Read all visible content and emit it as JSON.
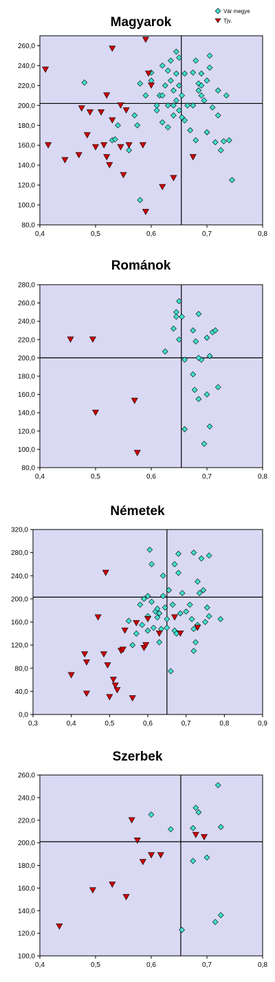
{
  "legend": [
    {
      "label": "Vár megye",
      "color": "#40E0D0",
      "marker": "diamond"
    },
    {
      "label": "Tjv.",
      "color": "#CC0000",
      "marker": "triangle-down"
    }
  ],
  "chart_data": [
    {
      "type": "scatter",
      "title": "Magyarok",
      "xlim": [
        0.4,
        0.8
      ],
      "ylim": [
        80,
        270
      ],
      "xticks": [
        "0,4",
        "0,5",
        "0,6",
        "0,7",
        "0,8"
      ],
      "yticks": [
        "80,0",
        "100,0",
        "120,0",
        "140,0",
        "160,0",
        "180,0",
        "200,0",
        "220,0",
        "240,0",
        "260,0"
      ],
      "ytick_values": [
        80,
        100,
        120,
        140,
        160,
        180,
        200,
        220,
        240,
        260
      ],
      "xtick_values": [
        0.4,
        0.5,
        0.6,
        0.7,
        0.8
      ],
      "refline": {
        "x": 0.654,
        "y": 202
      },
      "series": [
        {
          "name": "Vár megye",
          "points": [
            [
              0.48,
              223
            ],
            [
              0.57,
              190
            ],
            [
              0.575,
              180
            ],
            [
              0.58,
              105
            ],
            [
              0.58,
              222
            ],
            [
              0.59,
              210
            ],
            [
              0.6,
              225
            ],
            [
              0.6,
              233
            ],
            [
              0.61,
              200
            ],
            [
              0.61,
              195
            ],
            [
              0.615,
              210
            ],
            [
              0.62,
              240
            ],
            [
              0.62,
              210
            ],
            [
              0.62,
              183
            ],
            [
              0.625,
              220
            ],
            [
              0.63,
              235
            ],
            [
              0.63,
              200
            ],
            [
              0.63,
              178
            ],
            [
              0.635,
              245
            ],
            [
              0.635,
              225
            ],
            [
              0.64,
              215
            ],
            [
              0.64,
              200
            ],
            [
              0.64,
              190
            ],
            [
              0.645,
              254
            ],
            [
              0.645,
              232
            ],
            [
              0.645,
              205
            ],
            [
              0.65,
              248
            ],
            [
              0.65,
              220
            ],
            [
              0.65,
              195
            ],
            [
              0.655,
              210
            ],
            [
              0.655,
              188
            ],
            [
              0.66,
              232
            ],
            [
              0.66,
              185
            ],
            [
              0.665,
              200
            ],
            [
              0.67,
              175
            ],
            [
              0.675,
              233
            ],
            [
              0.675,
              200
            ],
            [
              0.68,
              245
            ],
            [
              0.68,
              165
            ],
            [
              0.685,
              222
            ],
            [
              0.685,
              215
            ],
            [
              0.69,
              210
            ],
            [
              0.69,
              220
            ],
            [
              0.69,
              232
            ],
            [
              0.695,
              205
            ],
            [
              0.7,
              225
            ],
            [
              0.7,
              173
            ],
            [
              0.705,
              250
            ],
            [
              0.705,
              238
            ],
            [
              0.71,
              198
            ],
            [
              0.715,
              163
            ],
            [
              0.72,
              215
            ],
            [
              0.72,
              190
            ],
            [
              0.725,
              155
            ],
            [
              0.73,
              164
            ],
            [
              0.735,
              210
            ],
            [
              0.74,
              165
            ],
            [
              0.745,
              125
            ],
            [
              0.53,
              165
            ],
            [
              0.535,
              166
            ],
            [
              0.56,
              155
            ],
            [
              0.54,
              180
            ]
          ]
        },
        {
          "name": "Tjv.",
          "points": [
            [
              0.41,
              236
            ],
            [
              0.415,
              160
            ],
            [
              0.445,
              145
            ],
            [
              0.47,
              150
            ],
            [
              0.475,
              197
            ],
            [
              0.485,
              170
            ],
            [
              0.49,
              193
            ],
            [
              0.5,
              158
            ],
            [
              0.51,
              193
            ],
            [
              0.515,
              160
            ],
            [
              0.52,
              148
            ],
            [
              0.52,
              210
            ],
            [
              0.525,
              140
            ],
            [
              0.53,
              257
            ],
            [
              0.545,
              200
            ],
            [
              0.545,
              158
            ],
            [
              0.55,
              130
            ],
            [
              0.555,
              195
            ],
            [
              0.56,
              160
            ],
            [
              0.585,
              160
            ],
            [
              0.59,
              266
            ],
            [
              0.59,
              93
            ],
            [
              0.595,
              232
            ],
            [
              0.6,
              220
            ],
            [
              0.62,
              118
            ],
            [
              0.64,
              127
            ],
            [
              0.675,
              148
            ],
            [
              0.53,
              185
            ]
          ]
        }
      ]
    },
    {
      "type": "scatter",
      "title": "Románok",
      "xlim": [
        0.4,
        0.8
      ],
      "ylim": [
        80,
        280
      ],
      "xticks": [
        "0,4",
        "0,5",
        "0,6",
        "0,7",
        "0,8"
      ],
      "yticks": [
        "80,0",
        "100,0",
        "120,0",
        "140,0",
        "160,0",
        "180,0",
        "200,0",
        "220,0",
        "240,0",
        "260,0",
        "280,0"
      ],
      "ytick_values": [
        80,
        100,
        120,
        140,
        160,
        180,
        200,
        220,
        240,
        260,
        280
      ],
      "xtick_values": [
        0.4,
        0.5,
        0.6,
        0.7,
        0.8
      ],
      "refline": {
        "x": 0.654,
        "y": 200
      },
      "series": [
        {
          "name": "Vár megye",
          "points": [
            [
              0.625,
              207
            ],
            [
              0.64,
              232
            ],
            [
              0.645,
              250
            ],
            [
              0.645,
              245
            ],
            [
              0.65,
              262
            ],
            [
              0.65,
              220
            ],
            [
              0.655,
              245
            ],
            [
              0.66,
              198
            ],
            [
              0.66,
              122
            ],
            [
              0.675,
              230
            ],
            [
              0.675,
              182
            ],
            [
              0.68,
              218
            ],
            [
              0.685,
              248
            ],
            [
              0.685,
              155
            ],
            [
              0.69,
              198
            ],
            [
              0.695,
              106
            ],
            [
              0.7,
              222
            ],
            [
              0.7,
              160
            ],
            [
              0.705,
              202
            ],
            [
              0.705,
              125
            ],
            [
              0.71,
              228
            ],
            [
              0.715,
              230
            ],
            [
              0.72,
              168
            ],
            [
              0.685,
              200
            ],
            [
              0.678,
              165
            ]
          ]
        },
        {
          "name": "Tjv.",
          "points": [
            [
              0.455,
              220
            ],
            [
              0.495,
              220
            ],
            [
              0.5,
              140
            ],
            [
              0.57,
              153
            ],
            [
              0.575,
              96
            ]
          ]
        }
      ]
    },
    {
      "type": "scatter",
      "title": "Németek",
      "xlim": [
        0.3,
        0.9
      ],
      "ylim": [
        0,
        320
      ],
      "xticks": [
        "0,3",
        "0,4",
        "0,5",
        "0,6",
        "0,7",
        "0,8",
        "0,9"
      ],
      "yticks": [
        "0,0",
        "40,0",
        "80,0",
        "120,0",
        "160,0",
        "200,0",
        "240,0",
        "280,0",
        "320,0"
      ],
      "ytick_values": [
        0,
        40,
        80,
        120,
        160,
        200,
        240,
        280,
        320
      ],
      "xtick_values": [
        0.3,
        0.4,
        0.5,
        0.6,
        0.7,
        0.8,
        0.9
      ],
      "refline": {
        "x": 0.65,
        "y": 203
      },
      "series": [
        {
          "name": "Vár megye",
          "points": [
            [
              0.55,
              162
            ],
            [
              0.56,
              120
            ],
            [
              0.57,
              140
            ],
            [
              0.58,
              190
            ],
            [
              0.585,
              155
            ],
            [
              0.59,
              200
            ],
            [
              0.6,
              205
            ],
            [
              0.6,
              170
            ],
            [
              0.6,
              145
            ],
            [
              0.605,
              285
            ],
            [
              0.61,
              260
            ],
            [
              0.61,
              195
            ],
            [
              0.615,
              150
            ],
            [
              0.62,
              178
            ],
            [
              0.625,
              183
            ],
            [
              0.625,
              168
            ],
            [
              0.63,
              175
            ],
            [
              0.63,
              125
            ],
            [
              0.635,
              148
            ],
            [
              0.64,
              240
            ],
            [
              0.64,
              205
            ],
            [
              0.645,
              185
            ],
            [
              0.65,
              165
            ],
            [
              0.65,
              150
            ],
            [
              0.655,
              215
            ],
            [
              0.66,
              75
            ],
            [
              0.665,
              190
            ],
            [
              0.67,
              260
            ],
            [
              0.67,
              145
            ],
            [
              0.675,
              140
            ],
            [
              0.68,
              278
            ],
            [
              0.68,
              245
            ],
            [
              0.685,
              175
            ],
            [
              0.69,
              210
            ],
            [
              0.7,
              178
            ],
            [
              0.71,
              190
            ],
            [
              0.715,
              165
            ],
            [
              0.72,
              280
            ],
            [
              0.72,
              148
            ],
            [
              0.72,
              110
            ],
            [
              0.725,
              125
            ],
            [
              0.73,
              230
            ],
            [
              0.735,
              210
            ],
            [
              0.74,
              270
            ],
            [
              0.745,
              215
            ],
            [
              0.75,
              160
            ],
            [
              0.755,
              185
            ],
            [
              0.76,
              275
            ],
            [
              0.79,
              165
            ],
            [
              0.76,
              170
            ],
            [
              0.73,
              155
            ]
          ]
        },
        {
          "name": "Tjv.",
          "points": [
            [
              0.4,
              68
            ],
            [
              0.435,
              104
            ],
            [
              0.44,
              36
            ],
            [
              0.44,
              90
            ],
            [
              0.47,
              168
            ],
            [
              0.485,
              104
            ],
            [
              0.49,
              245
            ],
            [
              0.495,
              85
            ],
            [
              0.5,
              30
            ],
            [
              0.51,
              60
            ],
            [
              0.515,
              50
            ],
            [
              0.52,
              42
            ],
            [
              0.53,
              110
            ],
            [
              0.535,
              112
            ],
            [
              0.54,
              145
            ],
            [
              0.56,
              28
            ],
            [
              0.57,
              158
            ],
            [
              0.59,
              115
            ],
            [
              0.595,
              120
            ],
            [
              0.6,
              165
            ],
            [
              0.63,
              140
            ],
            [
              0.67,
              168
            ],
            [
              0.685,
              140
            ],
            [
              0.73,
              150
            ]
          ]
        }
      ]
    },
    {
      "type": "scatter",
      "title": "Szerbek",
      "xlim": [
        0.4,
        0.8
      ],
      "ylim": [
        100,
        260
      ],
      "xticks": [
        "0,4",
        "0,5",
        "0,6",
        "0,7",
        "0,8"
      ],
      "yticks": [
        "100,0",
        "120,0",
        "140,0",
        "160,0",
        "180,0",
        "200,0",
        "220,0",
        "240,0",
        "260,0"
      ],
      "ytick_values": [
        100,
        120,
        140,
        160,
        180,
        200,
        220,
        240,
        260
      ],
      "xtick_values": [
        0.4,
        0.5,
        0.6,
        0.7,
        0.8
      ],
      "refline": {
        "x": 0.653,
        "y": 201
      },
      "series": [
        {
          "name": "Vár megye",
          "points": [
            [
              0.6,
              225
            ],
            [
              0.635,
              212
            ],
            [
              0.655,
              123
            ],
            [
              0.675,
              213
            ],
            [
              0.675,
              184
            ],
            [
              0.68,
              231
            ],
            [
              0.685,
              227
            ],
            [
              0.7,
              187
            ],
            [
              0.715,
              130
            ],
            [
              0.72,
              251
            ],
            [
              0.725,
              214
            ],
            [
              0.725,
              136
            ]
          ]
        },
        {
          "name": "Tjv.",
          "points": [
            [
              0.435,
              126
            ],
            [
              0.495,
              158
            ],
            [
              0.53,
              163
            ],
            [
              0.555,
              152
            ],
            [
              0.565,
              220
            ],
            [
              0.575,
              202
            ],
            [
              0.585,
              183
            ],
            [
              0.6,
              189
            ],
            [
              0.617,
              189
            ],
            [
              0.68,
              207
            ],
            [
              0.695,
              205
            ]
          ]
        }
      ]
    }
  ]
}
